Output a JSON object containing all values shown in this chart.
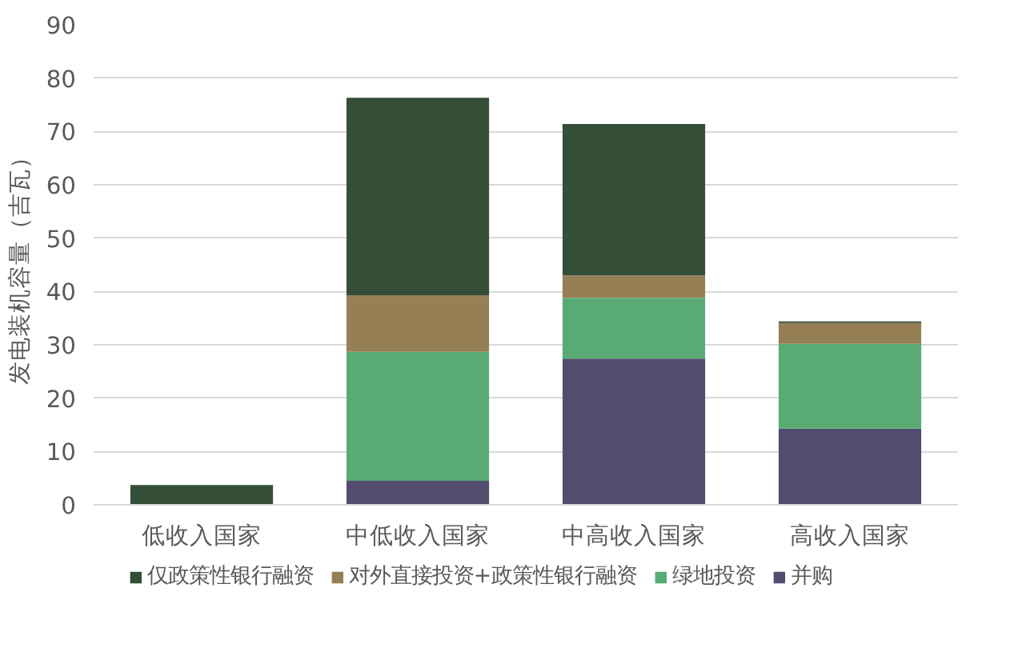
{
  "chart_data": {
    "type": "bar",
    "stacked": true,
    "ylabel": "发电装机容量（吉瓦）",
    "categories": [
      "低收入国家",
      "中低收入国家",
      "中高收入国家",
      "高收入国家"
    ],
    "series": [
      {
        "name": "并购",
        "color": "#524d6f",
        "values": [
          0,
          4.5,
          27.4,
          14.3
        ]
      },
      {
        "name": "绿地投资",
        "color": "#5aab73",
        "values": [
          0,
          24.2,
          11.4,
          15.9
        ]
      },
      {
        "name": "对外直接投资+政策性银行融资",
        "color": "#977f55",
        "values": [
          0,
          10.6,
          4.2,
          3.9
        ]
      },
      {
        "name": "仅政策性银行融资",
        "color": "#354e37",
        "values": [
          3.7,
          37.0,
          28.4,
          0.3
        ]
      }
    ],
    "ylim": [
      0,
      90
    ],
    "yticks": [
      0,
      10,
      20,
      30,
      40,
      50,
      60,
      70,
      80,
      90
    ],
    "grid": "y",
    "legend": "bottom"
  }
}
